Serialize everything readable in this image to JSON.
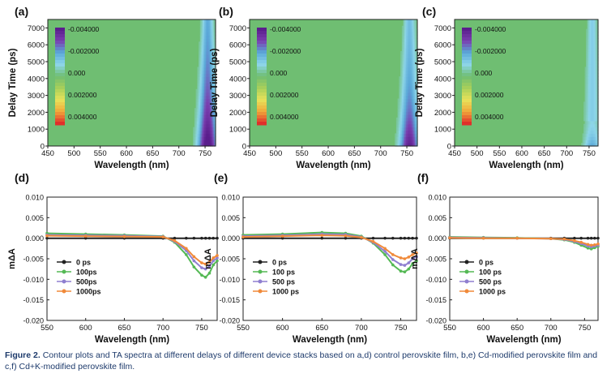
{
  "figure": {
    "caption_label": "Figure 2.",
    "caption_text": "Contour plots and TA spectra at different delays of different device stacks based on a,d) control perovskite film, b,e) Cd-modified perovskite film and c,f) Cd+K-modified perovskite film."
  },
  "colors": {
    "background_zero": "#6fbe72",
    "colorbar": [
      "#5a1e8c",
      "#7a3fb0",
      "#5aa8d8",
      "#8ed6ea",
      "#6fbe72",
      "#a8cf5a",
      "#e7e25a",
      "#f0a83a",
      "#e0302a"
    ],
    "series": [
      "#222222",
      "#55b955",
      "#8f7fd0",
      "#f08a3a"
    ]
  },
  "chart_data": [
    {
      "panel": "(a)",
      "type": "heatmap",
      "xlabel": "Wavelength (nm)",
      "ylabel": "Delay Time (ps)",
      "xlim": [
        450,
        770
      ],
      "ylim": [
        0,
        7500
      ],
      "xticks": [
        450,
        500,
        550,
        600,
        650,
        700,
        750
      ],
      "yticks": [
        0,
        1000,
        2000,
        3000,
        4000,
        5000,
        6000,
        7000
      ],
      "colorbar_labels": [
        "-0.004000",
        "-0.002000",
        "0.000",
        "0.002000",
        "0.004000"
      ],
      "colorbar_values": [
        -0.004,
        -0.002,
        0.0,
        0.002,
        0.004
      ],
      "bleach": {
        "center_nm": 755,
        "max_delay_ps": 7500,
        "min_value": -0.0045
      }
    },
    {
      "panel": "(b)",
      "type": "heatmap",
      "xlabel": "Wavelength (nm)",
      "ylabel": "Delay Time (ps)",
      "xlim": [
        450,
        770
      ],
      "ylim": [
        0,
        7500
      ],
      "xticks": [
        450,
        500,
        550,
        600,
        650,
        700,
        750
      ],
      "yticks": [
        0,
        1000,
        2000,
        3000,
        4000,
        5000,
        6000,
        7000
      ],
      "colorbar_labels": [
        "-0.004000",
        "-0.002000",
        "0.000",
        "0.002000",
        "0.004000"
      ],
      "colorbar_values": [
        -0.004,
        -0.002,
        0.0,
        0.002,
        0.004
      ],
      "bleach": {
        "center_nm": 755,
        "max_delay_ps": 7500,
        "min_value": -0.004
      }
    },
    {
      "panel": "(c)",
      "type": "heatmap",
      "xlabel": "Wavelength (nm)",
      "ylabel": "Delay Time (ps)",
      "xlim": [
        450,
        770
      ],
      "ylim": [
        0,
        7500
      ],
      "xticks": [
        450,
        500,
        550,
        600,
        650,
        700,
        750
      ],
      "yticks": [
        0,
        1000,
        2000,
        3000,
        4000,
        5000,
        6000,
        7000
      ],
      "colorbar_labels": [
        "-0.004000",
        "-0.002000",
        "0.000",
        "0.002000",
        "0.004000"
      ],
      "colorbar_values": [
        -0.004,
        -0.002,
        0.0,
        0.002,
        0.004
      ],
      "bleach": {
        "center_nm": 757,
        "max_delay_ps": 7500,
        "min_value": -0.002
      }
    },
    {
      "panel": "(d)",
      "type": "line",
      "xlabel": "Wavelength (nm)",
      "ylabel": "mΔA",
      "xlim": [
        550,
        770
      ],
      "ylim": [
        -0.02,
        0.01
      ],
      "xticks": [
        550,
        600,
        650,
        700,
        750
      ],
      "yticks": [
        0.01,
        0.005,
        0.0,
        -0.005,
        -0.01,
        -0.015,
        -0.02
      ],
      "ytick_labels": [
        "0.010",
        "0.005",
        "0.000",
        "-0.005",
        "-0.010",
        "-0.015",
        "-0.020"
      ],
      "x": [
        550,
        600,
        650,
        700,
        715,
        730,
        740,
        750,
        755,
        760,
        765,
        770
      ],
      "series": [
        {
          "name": "0 ps",
          "values": [
            0.0,
            0.0,
            0.0,
            0.0,
            0.0,
            0.0,
            0.0,
            0.0,
            0.0,
            0.0,
            0.0,
            0.0
          ]
        },
        {
          "name": "100ps",
          "values": [
            0.0012,
            0.001,
            0.0008,
            0.0005,
            -0.001,
            -0.004,
            -0.007,
            -0.009,
            -0.0095,
            -0.0085,
            -0.0065,
            -0.0055
          ]
        },
        {
          "name": "500ps",
          "values": [
            0.0008,
            0.0007,
            0.0006,
            0.0004,
            -0.0008,
            -0.003,
            -0.0055,
            -0.0072,
            -0.0075,
            -0.0068,
            -0.0055,
            -0.0048
          ]
        },
        {
          "name": "1000ps",
          "values": [
            0.0006,
            0.0005,
            0.0004,
            0.0003,
            -0.0006,
            -0.0025,
            -0.0045,
            -0.006,
            -0.0063,
            -0.0058,
            -0.0048,
            -0.0042
          ]
        }
      ]
    },
    {
      "panel": "(e)",
      "type": "line",
      "xlabel": "Wavelength (nm)",
      "ylabel": "mΔA",
      "xlim": [
        550,
        770
      ],
      "ylim": [
        -0.02,
        0.01
      ],
      "xticks": [
        550,
        600,
        650,
        700,
        750
      ],
      "yticks": [
        0.01,
        0.005,
        0.0,
        -0.005,
        -0.01,
        -0.015,
        -0.02
      ],
      "ytick_labels": [
        "0.010",
        "0.005",
        "0.000",
        "-0.005",
        "-0.010",
        "-0.015",
        "-0.020"
      ],
      "x": [
        550,
        600,
        650,
        680,
        700,
        715,
        730,
        740,
        750,
        755,
        760,
        765,
        770
      ],
      "series": [
        {
          "name": "0 ps",
          "values": [
            0.0,
            0.0,
            0.0,
            0.0,
            0.0,
            0.0,
            0.0,
            0.0,
            0.0,
            0.0,
            0.0,
            0.0,
            0.0
          ]
        },
        {
          "name": "100 ps",
          "values": [
            0.0008,
            0.001,
            0.0014,
            0.0012,
            0.0005,
            -0.0012,
            -0.004,
            -0.0065,
            -0.008,
            -0.0082,
            -0.0075,
            -0.0062,
            -0.0055
          ]
        },
        {
          "name": "500 ps",
          "values": [
            0.0005,
            0.0007,
            0.001,
            0.0009,
            0.0003,
            -0.001,
            -0.0032,
            -0.0052,
            -0.0064,
            -0.0066,
            -0.006,
            -0.005,
            -0.0045
          ]
        },
        {
          "name": "1000 ps",
          "values": [
            0.0003,
            0.0005,
            0.0007,
            0.0006,
            0.0002,
            -0.0008,
            -0.0025,
            -0.004,
            -0.0048,
            -0.005,
            -0.0046,
            -0.004,
            -0.0036
          ]
        }
      ]
    },
    {
      "panel": "(f)",
      "type": "line",
      "xlabel": "Wavelength (nm)",
      "ylabel": "mΔA",
      "xlim": [
        550,
        770
      ],
      "ylim": [
        -0.02,
        0.01
      ],
      "xticks": [
        550,
        600,
        650,
        700,
        750
      ],
      "yticks": [
        0.01,
        0.005,
        0.0,
        -0.005,
        -0.01,
        -0.015,
        -0.02
      ],
      "ytick_labels": [
        "0.010",
        "0.005",
        "0.000",
        "-0.005",
        "-0.010",
        "-0.015",
        "-0.020"
      ],
      "x": [
        550,
        600,
        650,
        700,
        720,
        735,
        745,
        755,
        760,
        765,
        770
      ],
      "series": [
        {
          "name": "0 ps",
          "values": [
            0.0,
            0.0,
            0.0,
            0.0,
            0.0,
            0.0,
            0.0,
            0.0,
            0.0,
            0.0,
            0.0
          ]
        },
        {
          "name": "100 ps",
          "values": [
            0.0003,
            0.0002,
            0.0001,
            -0.0001,
            -0.0004,
            -0.001,
            -0.0017,
            -0.0024,
            -0.0026,
            -0.0023,
            -0.002
          ]
        },
        {
          "name": "500 ps",
          "values": [
            0.0002,
            0.0001,
            0.0,
            -0.0001,
            -0.0003,
            -0.0008,
            -0.0013,
            -0.0019,
            -0.0021,
            -0.0019,
            -0.0017
          ]
        },
        {
          "name": "1000 ps",
          "values": [
            0.0001,
            0.0,
            0.0,
            -0.0001,
            -0.0002,
            -0.0006,
            -0.001,
            -0.0015,
            -0.0017,
            -0.0016,
            -0.0014
          ]
        }
      ]
    }
  ]
}
